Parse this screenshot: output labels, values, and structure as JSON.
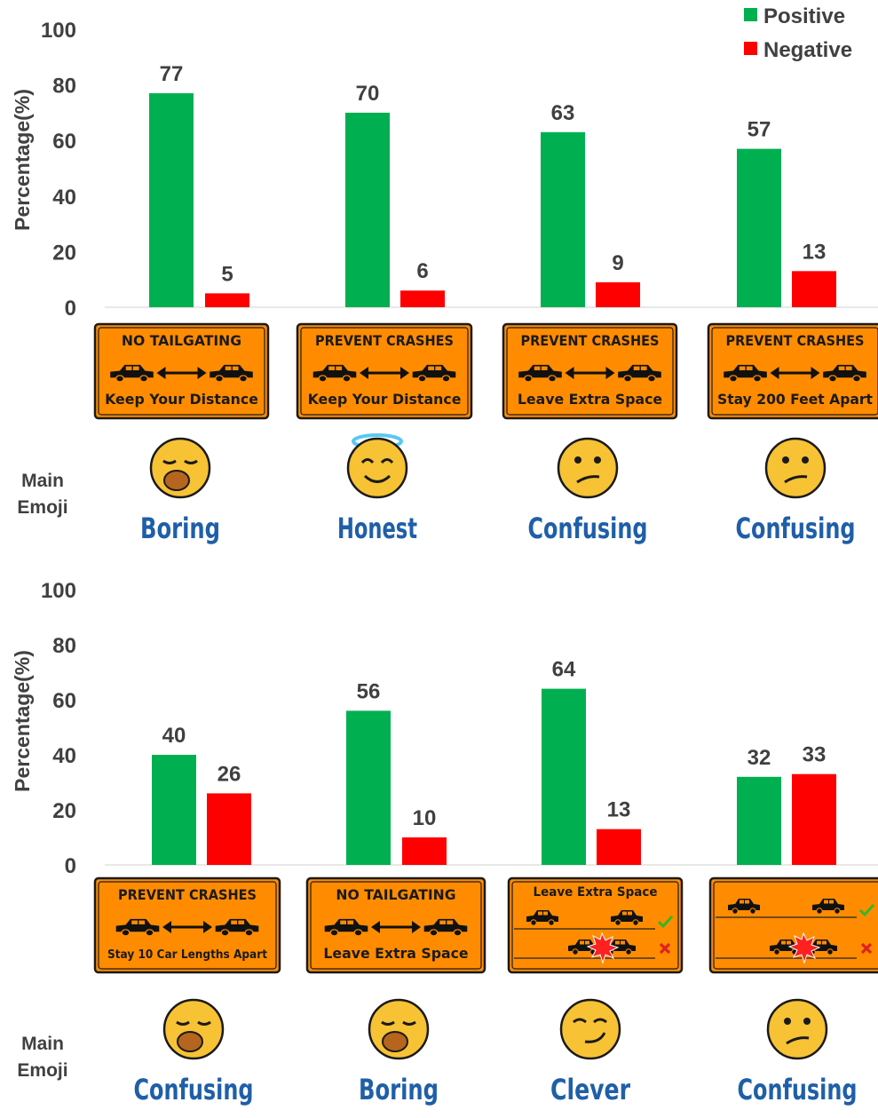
{
  "legend": {
    "positive": "Positive",
    "negative": "Negative"
  },
  "colors": {
    "positive": "#00b050",
    "negative": "#ff0000",
    "sign_fill": "#ff8c00",
    "sign_border": "#1a1a1a",
    "emotion_word": "#1f5fa8",
    "axis_text": "#404040"
  },
  "row_label_main": "Main",
  "row_label_emoji": "Emoji",
  "chart_data": [
    {
      "type": "bar",
      "ylabel": "Percentage(%)",
      "ylim": [
        0,
        100
      ],
      "yticks": [
        0,
        20,
        40,
        60,
        80,
        100
      ],
      "grid": false,
      "legend_position": "top-right",
      "categories": [
        "sign-1",
        "sign-2",
        "sign-3",
        "sign-4"
      ],
      "series": [
        {
          "name": "Positive",
          "values": [
            77,
            70,
            63,
            57
          ]
        },
        {
          "name": "Negative",
          "values": [
            5,
            6,
            9,
            13
          ]
        }
      ],
      "signs": [
        {
          "kind": "text",
          "top": "NO TAILGATING",
          "bottom": "Keep Your Distance"
        },
        {
          "kind": "text",
          "top": "PREVENT CRASHES",
          "bottom": "Keep Your Distance"
        },
        {
          "kind": "text",
          "top": "PREVENT CRASHES",
          "bottom": "Leave Extra Space"
        },
        {
          "kind": "text",
          "top": "PREVENT CRASHES",
          "bottom": "Stay 200 Feet Apart"
        }
      ],
      "emojis": [
        "yawning-face",
        "smiling-face-with-halo",
        "confused-face",
        "confused-face"
      ],
      "words": [
        "Boring",
        "Honest",
        "Confusing",
        "Confusing"
      ]
    },
    {
      "type": "bar",
      "ylabel": "Percentage(%)",
      "ylim": [
        0,
        100
      ],
      "yticks": [
        0,
        20,
        40,
        60,
        80,
        100
      ],
      "grid": false,
      "categories": [
        "sign-5",
        "sign-6",
        "sign-7",
        "sign-8"
      ],
      "series": [
        {
          "name": "Positive",
          "values": [
            40,
            56,
            64,
            32
          ]
        },
        {
          "name": "Negative",
          "values": [
            26,
            10,
            13,
            33
          ]
        }
      ],
      "signs": [
        {
          "kind": "text",
          "top": "PREVENT CRASHES",
          "bottom": "Stay 10 Car Lengths Apart"
        },
        {
          "kind": "text",
          "top": "NO TAILGATING",
          "bottom": "Leave Extra Space"
        },
        {
          "kind": "picture",
          "top": "Leave  Extra Space",
          "bottom": ""
        },
        {
          "kind": "picture",
          "top": "",
          "bottom": ""
        }
      ],
      "emojis": [
        "yawning-face",
        "yawning-face",
        "smirking-face",
        "confused-face"
      ],
      "words": [
        "Confusing",
        "Boring",
        "Clever",
        "Confusing"
      ]
    }
  ]
}
